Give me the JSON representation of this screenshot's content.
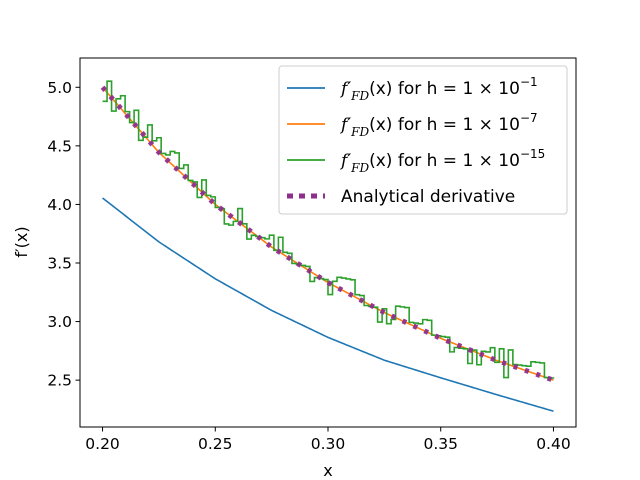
{
  "chart_data": {
    "type": "line",
    "xlabel": "x",
    "ylabel": "f′(x)",
    "xlim": [
      0.19,
      0.41
    ],
    "ylim": [
      2.1,
      5.25
    ],
    "xticks": [
      0.2,
      0.25,
      0.3,
      0.35,
      0.4
    ],
    "xtick_labels": [
      "0.20",
      "0.25",
      "0.30",
      "0.35",
      "0.40"
    ],
    "yticks": [
      2.5,
      3.0,
      3.5,
      4.0,
      4.5,
      5.0
    ],
    "ytick_labels": [
      "2.5",
      "3.0",
      "3.5",
      "4.0",
      "4.5",
      "5.0"
    ],
    "legend_position": "top-right",
    "grid": false,
    "series": [
      {
        "name": "f′FD(x) for h = 1×10⁻¹",
        "legend_prefix": "f′",
        "legend_sub": "FD",
        "legend_mid": "(x) for h = 1 × 10",
        "legend_exp": "−1",
        "color": "#1f77b4",
        "style": "solid",
        "x": [
          0.2,
          0.225,
          0.25,
          0.275,
          0.3,
          0.325,
          0.35,
          0.375,
          0.4
        ],
        "y": [
          4.055,
          3.68,
          3.365,
          3.095,
          2.865,
          2.67,
          2.52,
          2.375,
          2.235
        ]
      },
      {
        "name": "f′FD(x) for h = 1×10⁻⁷",
        "legend_prefix": "f′",
        "legend_sub": "FD",
        "legend_mid": "(x) for h = 1 × 10",
        "legend_exp": "−7",
        "color": "#ff7f0e",
        "style": "solid",
        "x": [
          0.2,
          0.225,
          0.25,
          0.275,
          0.3,
          0.325,
          0.35,
          0.375,
          0.4
        ],
        "y": [
          5.0,
          4.444,
          4.0,
          3.636,
          3.333,
          3.077,
          2.857,
          2.667,
          2.5
        ]
      },
      {
        "name": "f′FD(x) for h = 1×10⁻¹⁵",
        "legend_prefix": "f′",
        "legend_sub": "FD",
        "legend_mid": "(x) for h = 1 × 10",
        "legend_exp": "−15",
        "color": "#2ca02c",
        "style": "noisy",
        "x": [
          0.2,
          0.225,
          0.25,
          0.275,
          0.3,
          0.325,
          0.35,
          0.375,
          0.4
        ],
        "y": [
          5.0,
          4.444,
          4.0,
          3.636,
          3.333,
          3.077,
          2.857,
          2.667,
          2.5
        ]
      },
      {
        "name": "Analytical derivative",
        "legend_label": "Analytical derivative",
        "color": "#8e2f8c",
        "style": "dotted",
        "x": [
          0.2,
          0.225,
          0.25,
          0.275,
          0.3,
          0.325,
          0.35,
          0.375,
          0.4
        ],
        "y": [
          5.0,
          4.444,
          4.0,
          3.636,
          3.333,
          3.077,
          2.857,
          2.667,
          2.5
        ]
      }
    ]
  }
}
